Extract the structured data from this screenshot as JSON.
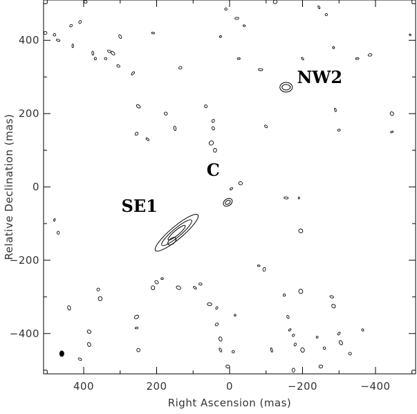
{
  "chart_data": {
    "type": "contour",
    "xlabel": "Right Ascension  (mas)",
    "ylabel": "Relative Declination  (mas)",
    "xlim": [
      510,
      -510
    ],
    "ylim": [
      -510,
      510
    ],
    "xticks": [
      400,
      200,
      0,
      -200,
      -400
    ],
    "yticks": [
      400,
      200,
      0,
      -200,
      -400
    ],
    "xtick_labels": [
      "400",
      "200",
      "0",
      "−200",
      "−400"
    ],
    "ytick_labels": [
      "400",
      "200",
      "0",
      "−200",
      "−400"
    ],
    "grid": false,
    "annotations": [
      {
        "text": "NW2",
        "x": -247,
        "y": 283
      },
      {
        "text": "C",
        "x": 45,
        "y": 30
      },
      {
        "text": "SE1",
        "x": 247,
        "y": -68
      }
    ],
    "components": [
      {
        "name": "NW2",
        "x": -155,
        "y": 272,
        "rings": [
          [
            9,
            7
          ],
          [
            6,
            4
          ]
        ],
        "angle": 0
      },
      {
        "name": "C",
        "x": 5,
        "y": -42,
        "rings": [
          [
            7,
            5
          ],
          [
            4,
            2.5
          ]
        ],
        "angle": -35
      },
      {
        "name": "SE1",
        "x": 145,
        "y": -125,
        "rings": [
          [
            40,
            9
          ],
          [
            28,
            6
          ],
          [
            16,
            3.5
          ]
        ],
        "angle": -40
      },
      {
        "name": "SE1-core",
        "x": 158,
        "y": -148,
        "rings": [
          [
            7,
            4
          ]
        ],
        "angle": -40
      }
    ],
    "noise_contours": [
      [
        505,
        420
      ],
      [
        480,
        415
      ],
      [
        470,
        400
      ],
      [
        435,
        440
      ],
      [
        430,
        385
      ],
      [
        410,
        450
      ],
      [
        395,
        505
      ],
      [
        375,
        365
      ],
      [
        368,
        350
      ],
      [
        340,
        350
      ],
      [
        330,
        370
      ],
      [
        320,
        365
      ],
      [
        305,
        330
      ],
      [
        300,
        410
      ],
      [
        265,
        310
      ],
      [
        250,
        220
      ],
      [
        255,
        145
      ],
      [
        225,
        130
      ],
      [
        210,
        420
      ],
      [
        175,
        200
      ],
      [
        150,
        160
      ],
      [
        135,
        325
      ],
      [
        65,
        220
      ],
      [
        45,
        180
      ],
      [
        45,
        160
      ],
      [
        50,
        120
      ],
      [
        40,
        100
      ],
      [
        25,
        410
      ],
      [
        10,
        485
      ],
      [
        -20,
        460
      ],
      [
        -40,
        440
      ],
      [
        -25,
        350
      ],
      [
        -30,
        10
      ],
      [
        -5,
        -5
      ],
      [
        -85,
        320
      ],
      [
        -100,
        165
      ],
      [
        -125,
        505
      ],
      [
        -155,
        -30
      ],
      [
        -190,
        -30
      ],
      [
        -195,
        -120
      ],
      [
        -200,
        350
      ],
      [
        -245,
        490
      ],
      [
        -265,
        470
      ],
      [
        -285,
        380
      ],
      [
        -290,
        210
      ],
      [
        -300,
        155
      ],
      [
        -350,
        350
      ],
      [
        -385,
        360
      ],
      [
        -445,
        200
      ],
      [
        -445,
        150
      ],
      [
        -495,
        415
      ],
      [
        480,
        -90
      ],
      [
        470,
        -125
      ],
      [
        440,
        -330
      ],
      [
        410,
        -470
      ],
      [
        385,
        -395
      ],
      [
        385,
        -430
      ],
      [
        360,
        -280
      ],
      [
        355,
        -305
      ],
      [
        255,
        -355
      ],
      [
        255,
        -385
      ],
      [
        250,
        -445
      ],
      [
        210,
        -275
      ],
      [
        200,
        -260
      ],
      [
        185,
        -250
      ],
      [
        140,
        -275
      ],
      [
        95,
        -275
      ],
      [
        80,
        -265
      ],
      [
        55,
        -320
      ],
      [
        35,
        -330
      ],
      [
        35,
        -375
      ],
      [
        25,
        -415
      ],
      [
        25,
        -445
      ],
      [
        5,
        -490
      ],
      [
        -15,
        -350
      ],
      [
        -10,
        -450
      ],
      [
        -80,
        -215
      ],
      [
        -95,
        -225
      ],
      [
        -115,
        -445
      ],
      [
        -150,
        -295
      ],
      [
        -160,
        -355
      ],
      [
        -165,
        -390
      ],
      [
        -175,
        -405
      ],
      [
        -180,
        -430
      ],
      [
        -195,
        -285
      ],
      [
        -200,
        -445
      ],
      [
        -240,
        -410
      ],
      [
        -250,
        -490
      ],
      [
        -260,
        -440
      ],
      [
        -280,
        -300
      ],
      [
        -285,
        -325
      ],
      [
        -300,
        -400
      ],
      [
        -305,
        -425
      ],
      [
        -330,
        -455
      ],
      [
        -365,
        -390
      ],
      [
        -175,
        -500
      ]
    ]
  }
}
